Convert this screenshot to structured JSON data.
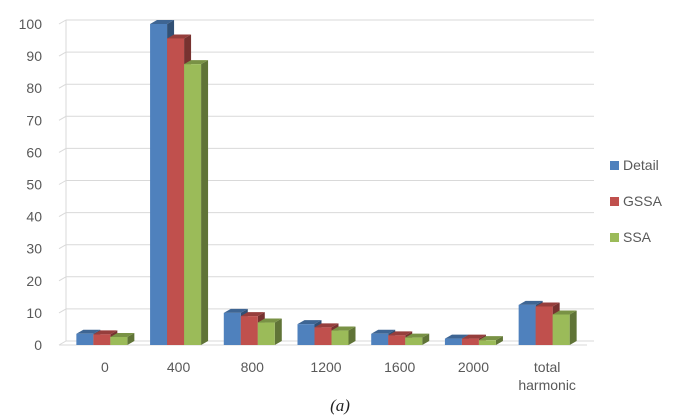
{
  "chart_data": {
    "type": "bar",
    "three_d": true,
    "categories": [
      "0",
      "400",
      "800",
      "1200",
      "1600",
      "2000",
      "total harmonic"
    ],
    "series": [
      {
        "name": "Detail",
        "values": [
          3.5,
          100,
          10,
          6.5,
          3.5,
          2,
          12.5
        ],
        "color": "#4f81bd"
      },
      {
        "name": "GSSA",
        "values": [
          3.3,
          95.5,
          9,
          5.5,
          3,
          2,
          12
        ],
        "color": "#c0504d"
      },
      {
        "name": "SSA",
        "values": [
          2.5,
          87.5,
          7,
          4.5,
          2.3,
          1.5,
          9.5
        ],
        "color": "#9bbb59"
      }
    ],
    "ylim": [
      0,
      100
    ],
    "yticks": [
      0,
      10,
      20,
      30,
      40,
      50,
      60,
      70,
      80,
      90,
      100
    ],
    "grid": true,
    "legend": "right",
    "caption": "(a)"
  }
}
